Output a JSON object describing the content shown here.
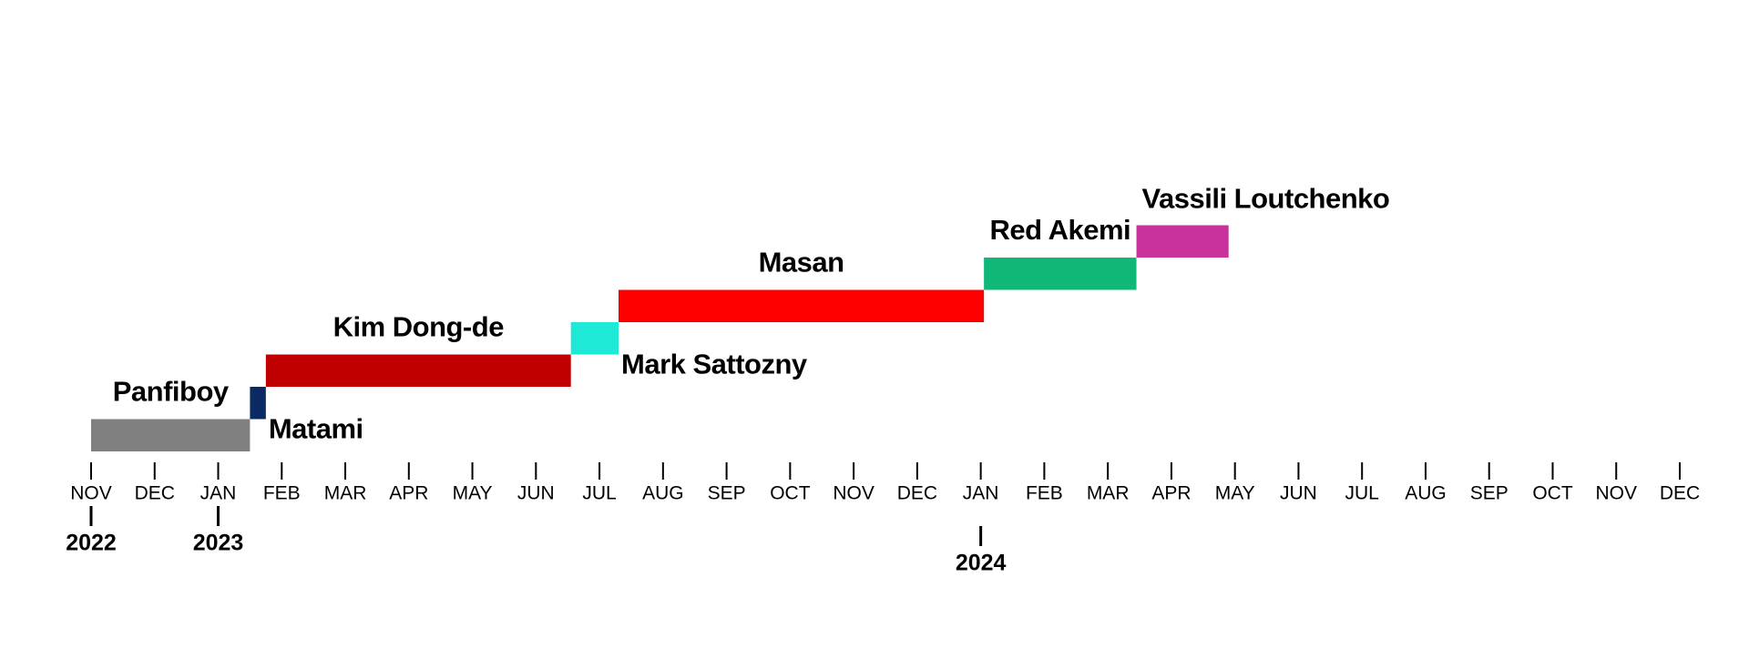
{
  "chart_data": {
    "type": "timeline",
    "tasks": [
      {
        "name": "Panfiboy",
        "color": "#808080",
        "start": 0,
        "end": 2.5
      },
      {
        "name": "Matami",
        "color": "#0b2a63",
        "start": 2.5,
        "end": 2.75
      },
      {
        "name": "Kim Dong-de",
        "color": "#c00000",
        "start": 2.75,
        "end": 7.55
      },
      {
        "name": "Mark Sattozny",
        "color": "#1de9d6",
        "start": 7.55,
        "end": 8.3
      },
      {
        "name": "Masan",
        "color": "#ff0000",
        "start": 8.3,
        "end": 14.05
      },
      {
        "name": "Red Akemi",
        "color": "#10b878",
        "start": 14.05,
        "end": 16.45
      },
      {
        "name": "Vassili Loutchenko",
        "color": "#c8329a",
        "start": 16.45,
        "end": 17.9
      }
    ],
    "xlim": [
      0,
      25
    ],
    "xticks": [
      {
        "value": 0,
        "label": "NOV"
      },
      {
        "value": 1,
        "label": "DEC"
      },
      {
        "value": 2,
        "label": "JAN"
      },
      {
        "value": 3,
        "label": "FEB"
      },
      {
        "value": 4,
        "label": "MAR"
      },
      {
        "value": 5,
        "label": "APR"
      },
      {
        "value": 6,
        "label": "MAY"
      },
      {
        "value": 7,
        "label": "JUN"
      },
      {
        "value": 8,
        "label": "JUL"
      },
      {
        "value": 9,
        "label": "AUG"
      },
      {
        "value": 10,
        "label": "SEP"
      },
      {
        "value": 11,
        "label": "OCT"
      },
      {
        "value": 12,
        "label": "NOV"
      },
      {
        "value": 13,
        "label": "DEC"
      },
      {
        "value": 14,
        "label": "JAN"
      },
      {
        "value": 15,
        "label": "FEB"
      },
      {
        "value": 16,
        "label": "MAR"
      },
      {
        "value": 17,
        "label": "APR"
      },
      {
        "value": 18,
        "label": "MAY"
      },
      {
        "value": 19,
        "label": "JUN"
      },
      {
        "value": 20,
        "label": "JUL"
      },
      {
        "value": 21,
        "label": "AUG"
      },
      {
        "value": 22,
        "label": "SEP"
      },
      {
        "value": 23,
        "label": "OCT"
      },
      {
        "value": 24,
        "label": "NOV"
      },
      {
        "value": 25,
        "label": "DEC"
      }
    ],
    "years": [
      {
        "value": 0,
        "label": "2022"
      },
      {
        "value": 2,
        "label": "2023"
      },
      {
        "value": 14,
        "label": "2024"
      }
    ]
  }
}
